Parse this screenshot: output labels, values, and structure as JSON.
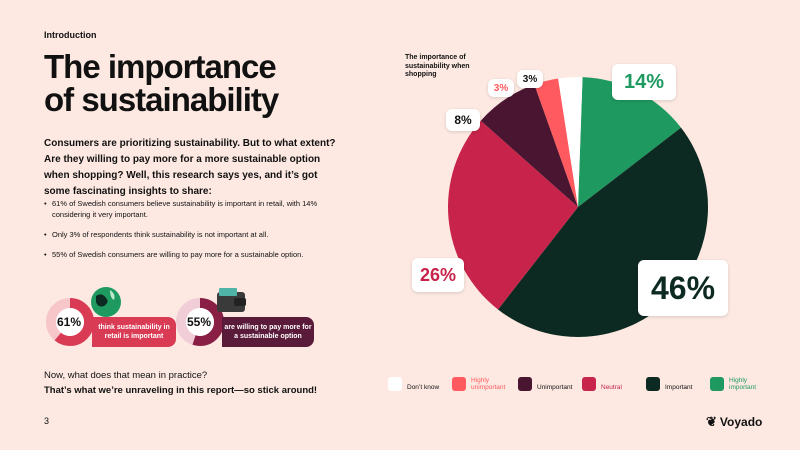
{
  "header": {
    "section": "Introduction",
    "title_line1": "The importance",
    "title_line2": "of sustainability"
  },
  "intro": "Consumers are prioritizing sustainability. But to what extent? Are they willing to pay more for a more sustainable option when shopping? Well, this research says yes, and it’s got some fascinating insights to share:",
  "bullets": [
    "61% of Swedish consumers believe sustainability is important in retail, with 14% considering it very important.",
    "Only 3% of respondents think sustainability is not important at all.",
    "55% of Swedish consumers are willing to pay more for a sustainable option."
  ],
  "stats": [
    {
      "value": "61%",
      "fraction": 0.61,
      "text": "think sustainability in retail is important",
      "icon": "globe-icon"
    },
    {
      "value": "55%",
      "fraction": 0.55,
      "text": "are willing to pay more for a sustainable option",
      "icon": "wallet-icon"
    }
  ],
  "question": {
    "line1": "Now, what does that mean in practice?",
    "line2": "That’s what we’re unraveling in this report—so stick around!"
  },
  "footer": {
    "page": "3",
    "brand": "Voyado"
  },
  "colors": {
    "background": "#fde9e2",
    "dont_know": "#ffffff",
    "highly_unimportant": "#ff5a5f",
    "unimportant": "#4a1530",
    "neutral": "#c8234a",
    "important": "#0d2a22",
    "highly_important": "#1e9a60"
  },
  "chart_data": {
    "type": "pie",
    "title": "The importance of sustainability when shopping",
    "categories": [
      "Don’t know",
      "Highly unimportant",
      "Unimportant",
      "Neutral",
      "Important",
      "Highly important"
    ],
    "values": [
      3,
      3,
      8,
      26,
      46,
      14
    ],
    "labels": [
      "3%",
      "3%",
      "8%",
      "26%",
      "46%",
      "14%"
    ],
    "colors": [
      "#ffffff",
      "#ff5a5f",
      "#4a1530",
      "#c8234a",
      "#0d2a22",
      "#1e9a60"
    ]
  }
}
